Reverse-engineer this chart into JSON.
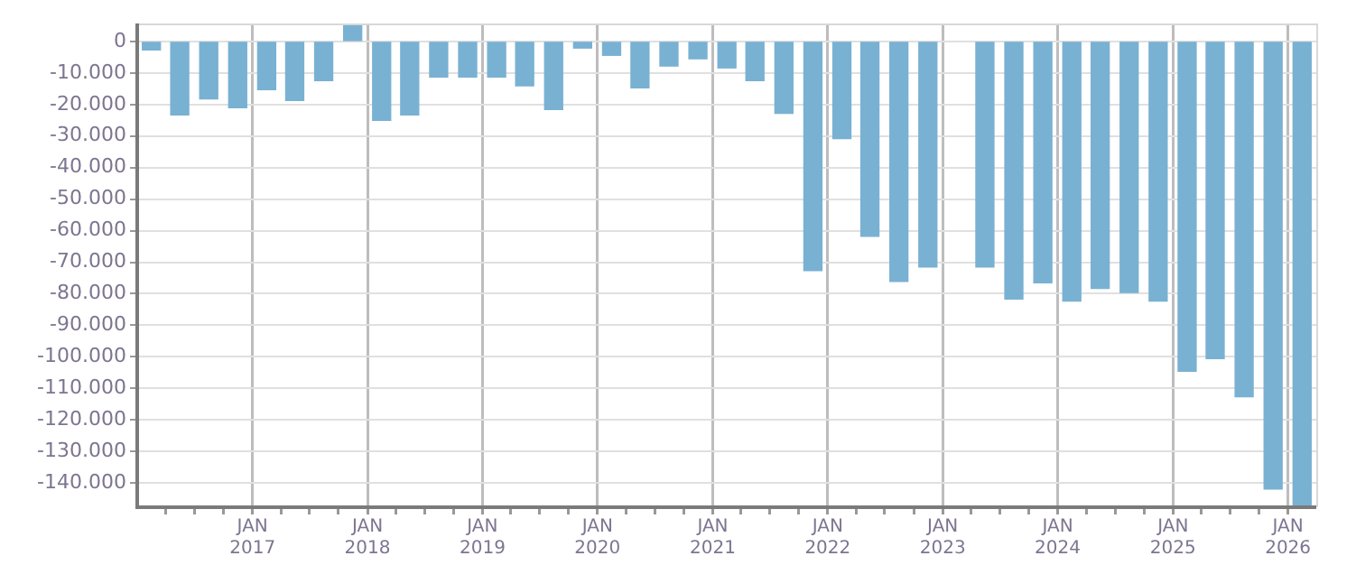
{
  "chart_data": {
    "type": "bar",
    "x": [
      "2016-02-15",
      "2016-05-15",
      "2016-08-15",
      "2016-11-15",
      "2017-02-15",
      "2017-05-15",
      "2017-08-15",
      "2017-11-15",
      "2018-02-15",
      "2018-05-15",
      "2018-08-15",
      "2018-11-15",
      "2019-02-15",
      "2019-05-15",
      "2019-08-15",
      "2019-11-15",
      "2020-02-15",
      "2020-05-15",
      "2020-08-15",
      "2020-11-15",
      "2021-02-15",
      "2021-05-15",
      "2021-08-15",
      "2021-11-15",
      "2022-02-15",
      "2022-05-15",
      "2022-08-15",
      "2022-11-15",
      "2023-02-15",
      "2023-05-15",
      "2023-08-15",
      "2023-11-15",
      "2024-02-15",
      "2024-05-15",
      "2024-08-15",
      "2024-11-15",
      "2025-02-15",
      "2025-05-15",
      "2025-08-15",
      "2025-11-15",
      "2026-02-15"
    ],
    "values": [
      -2700,
      -23300,
      -18200,
      -21000,
      -15300,
      -18700,
      -12400,
      5500,
      -25000,
      -23300,
      -11300,
      -11300,
      -11300,
      -14100,
      -21600,
      -2100,
      -4400,
      -14700,
      -7800,
      -5500,
      -8400,
      -12400,
      -22800,
      -72700,
      -30800,
      -61800,
      -76100,
      -71500,
      null,
      -71500,
      -81700,
      -76500,
      -82300,
      -78300,
      -79600,
      -82300,
      -104600,
      -100600,
      -112700,
      -141900,
      -147700
    ],
    "color": "#79b1d3",
    "xlim": [
      "2016-01-01",
      "2026-04-01"
    ],
    "xticks": [
      {
        "value": "2016-04-01",
        "label": null
      },
      {
        "value": "2016-07-01",
        "label": null
      },
      {
        "value": "2016-10-01",
        "label": null
      },
      {
        "value": "2017-01-01",
        "label": "JAN 2017"
      },
      {
        "value": "2017-04-01",
        "label": null
      },
      {
        "value": "2017-07-01",
        "label": null
      },
      {
        "value": "2017-10-01",
        "label": null
      },
      {
        "value": "2018-01-01",
        "label": "JAN 2018"
      },
      {
        "value": "2018-04-01",
        "label": null
      },
      {
        "value": "2018-07-01",
        "label": null
      },
      {
        "value": "2018-10-01",
        "label": null
      },
      {
        "value": "2019-01-01",
        "label": "JAN 2019"
      },
      {
        "value": "2019-04-01",
        "label": null
      },
      {
        "value": "2019-07-01",
        "label": null
      },
      {
        "value": "2019-10-01",
        "label": null
      },
      {
        "value": "2020-01-01",
        "label": "JAN 2020"
      },
      {
        "value": "2020-04-01",
        "label": null
      },
      {
        "value": "2020-07-01",
        "label": null
      },
      {
        "value": "2020-10-01",
        "label": null
      },
      {
        "value": "2021-01-01",
        "label": "JAN 2021"
      },
      {
        "value": "2021-04-01",
        "label": null
      },
      {
        "value": "2021-07-01",
        "label": null
      },
      {
        "value": "2021-10-01",
        "label": null
      },
      {
        "value": "2022-01-01",
        "label": "JAN 2022"
      },
      {
        "value": "2022-04-01",
        "label": null
      },
      {
        "value": "2022-07-01",
        "label": null
      },
      {
        "value": "2022-10-01",
        "label": null
      },
      {
        "value": "2023-01-01",
        "label": "JAN 2023"
      },
      {
        "value": "2023-04-01",
        "label": null
      },
      {
        "value": "2023-07-01",
        "label": null
      },
      {
        "value": "2023-10-01",
        "label": null
      },
      {
        "value": "2024-01-01",
        "label": "JAN 2024"
      },
      {
        "value": "2024-04-01",
        "label": null
      },
      {
        "value": "2024-07-01",
        "label": null
      },
      {
        "value": "2024-10-01",
        "label": null
      },
      {
        "value": "2025-01-01",
        "label": "JAN 2025"
      },
      {
        "value": "2025-04-01",
        "label": null
      },
      {
        "value": "2025-07-01",
        "label": null
      },
      {
        "value": "2025-10-01",
        "label": null
      },
      {
        "value": "2026-01-01",
        "label": "JAN 2026"
      }
    ],
    "ylim": [
      -147700,
      5700
    ],
    "yticks": [
      {
        "value": 0,
        "label": "0"
      },
      {
        "value": -10000,
        "label": "-10.000"
      },
      {
        "value": -20000,
        "label": "-20.000"
      },
      {
        "value": -30000,
        "label": "-30.000"
      },
      {
        "value": -40000,
        "label": "-40.000"
      },
      {
        "value": -50000,
        "label": "-50.000"
      },
      {
        "value": -60000,
        "label": "-60.000"
      },
      {
        "value": -70000,
        "label": "-70.000"
      },
      {
        "value": -80000,
        "label": "-80.000"
      },
      {
        "value": -90000,
        "label": "-90.000"
      },
      {
        "value": -100000,
        "label": "-100.000"
      },
      {
        "value": -110000,
        "label": "-110.000"
      },
      {
        "value": -120000,
        "label": "-120.000"
      },
      {
        "value": -130000,
        "label": "-130.000"
      },
      {
        "value": -140000,
        "label": "-140.000"
      }
    ],
    "grid": true
  }
}
